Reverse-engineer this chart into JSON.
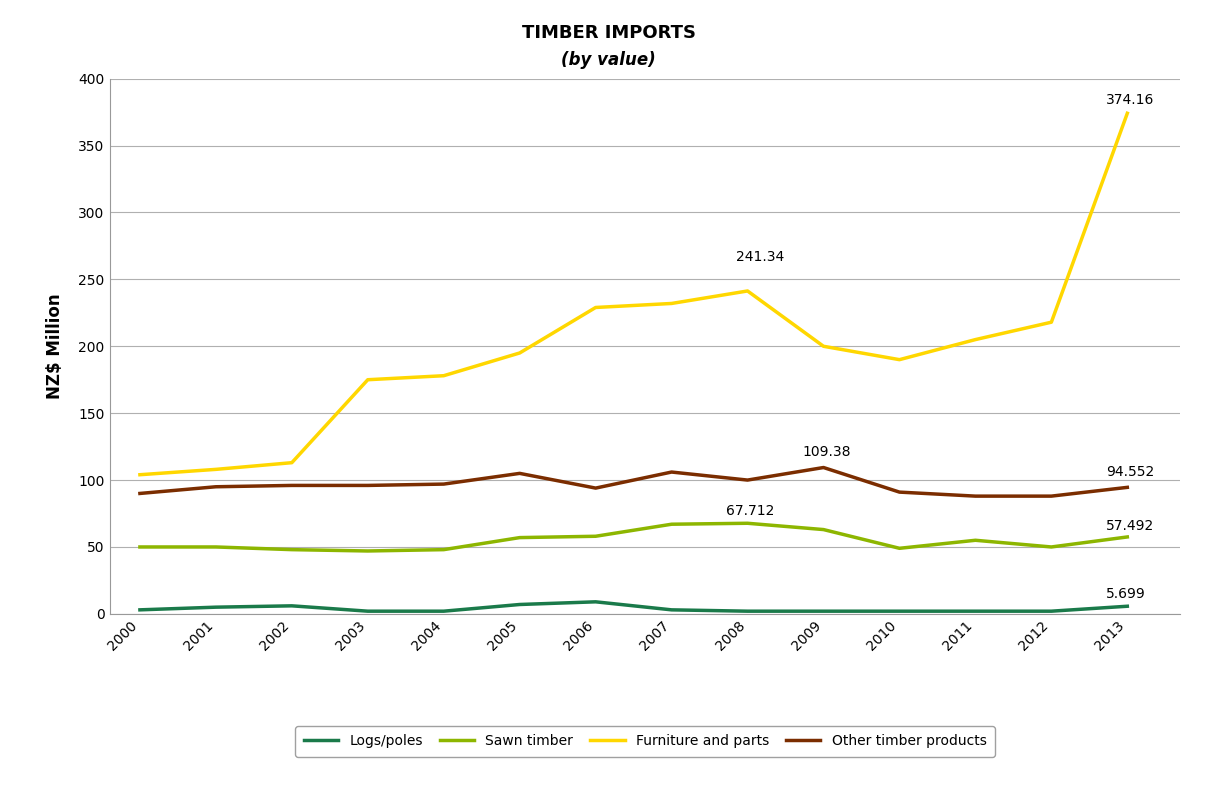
{
  "title": "TIMBER IMPORTS",
  "subtitle": "(by value)",
  "ylabel": "NZ$ Million",
  "years": [
    2000,
    2001,
    2002,
    2003,
    2004,
    2005,
    2006,
    2007,
    2008,
    2009,
    2010,
    2011,
    2012,
    2013
  ],
  "logs_poles": [
    3,
    5,
    6,
    2,
    2,
    7,
    9,
    3,
    2,
    2,
    2,
    2,
    2,
    5.699
  ],
  "sawn_timber": [
    50,
    50,
    48,
    47,
    48,
    57,
    58,
    67,
    67.712,
    63,
    49,
    55,
    50,
    57.492
  ],
  "furniture_parts": [
    104,
    108,
    113,
    175,
    178,
    195,
    229,
    232,
    241.34,
    200,
    190,
    205,
    218,
    374.16
  ],
  "other_timber": [
    90,
    95,
    96,
    96,
    97,
    105,
    94,
    106,
    100,
    109.38,
    91,
    88,
    88,
    94.552
  ],
  "colors": {
    "logs_poles": "#1a7a4a",
    "sawn_timber": "#8db600",
    "furniture_parts": "#ffd700",
    "other_timber": "#7b2d00"
  },
  "ylim": [
    0,
    400
  ],
  "yticks": [
    0,
    50,
    100,
    150,
    200,
    250,
    300,
    350,
    400
  ],
  "background_color": "#ffffff",
  "grid_color": "#b0b0b0",
  "line_width": 2.5,
  "legend_labels": [
    "Logs/poles",
    "Sawn timber",
    "Furniture and parts",
    "Other timber products"
  ],
  "annot_furniture_2008": [
    2007.85,
    264,
    "241.34"
  ],
  "annot_furniture_2013": [
    2012.72,
    381,
    "374.16"
  ],
  "annot_other_2009": [
    2008.72,
    118,
    "109.38"
  ],
  "annot_other_2013": [
    2012.72,
    103,
    "94.552"
  ],
  "annot_sawn_2008": [
    2007.72,
    74,
    "67.712"
  ],
  "annot_sawn_2013": [
    2012.72,
    63,
    "57.492"
  ],
  "annot_logs_2013": [
    2012.72,
    12,
    "5.699"
  ]
}
